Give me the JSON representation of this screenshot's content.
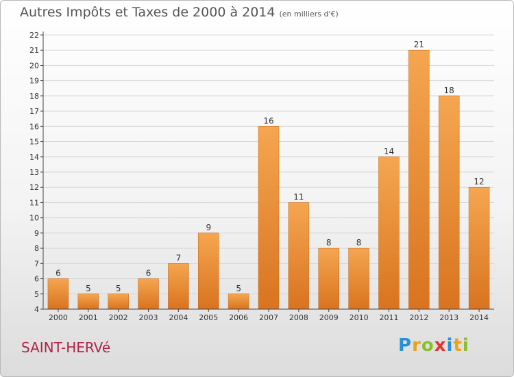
{
  "header": {
    "title": "Autres Impôts et Taxes de 2000 à 2014",
    "unit": "(en milliers d'€)"
  },
  "footer": {
    "town": "SAINT-HERVé",
    "logo_text": "Proxiti",
    "logo_letters": [
      {
        "ch": "P",
        "color": "#2a8fd4"
      },
      {
        "ch": "r",
        "color": "#e8a317"
      },
      {
        "ch": "o",
        "color": "#8bbf2a"
      },
      {
        "ch": "x",
        "color": "#e4342e"
      },
      {
        "ch": "i",
        "color": "#2a8fd4"
      },
      {
        "ch": "t",
        "color": "#e8a317"
      },
      {
        "ch": "i",
        "color": "#8bbf2a"
      }
    ]
  },
  "colors": {
    "bar_light": "#f5a650",
    "bar_dark": "#d9731f",
    "grid": "#d8d8d8",
    "axis": "#444444",
    "text": "#333333"
  },
  "chart_data": {
    "type": "bar",
    "title": "Autres Impôts et Taxes de 2000 à 2014",
    "subtitle": "(en milliers d'€)",
    "categories": [
      "2000",
      "2001",
      "2002",
      "2003",
      "2004",
      "2005",
      "2006",
      "2007",
      "2008",
      "2009",
      "2010",
      "2011",
      "2012",
      "2013",
      "2014"
    ],
    "values": [
      6,
      5,
      5,
      6,
      7,
      9,
      5,
      16,
      11,
      8,
      8,
      14,
      21,
      18,
      12
    ],
    "ylim": [
      4,
      22
    ],
    "yticks": [
      4,
      5,
      6,
      7,
      8,
      9,
      10,
      11,
      12,
      13,
      14,
      15,
      16,
      17,
      18,
      19,
      20,
      21,
      22
    ],
    "grid": true,
    "xlabel": "",
    "ylabel": ""
  }
}
